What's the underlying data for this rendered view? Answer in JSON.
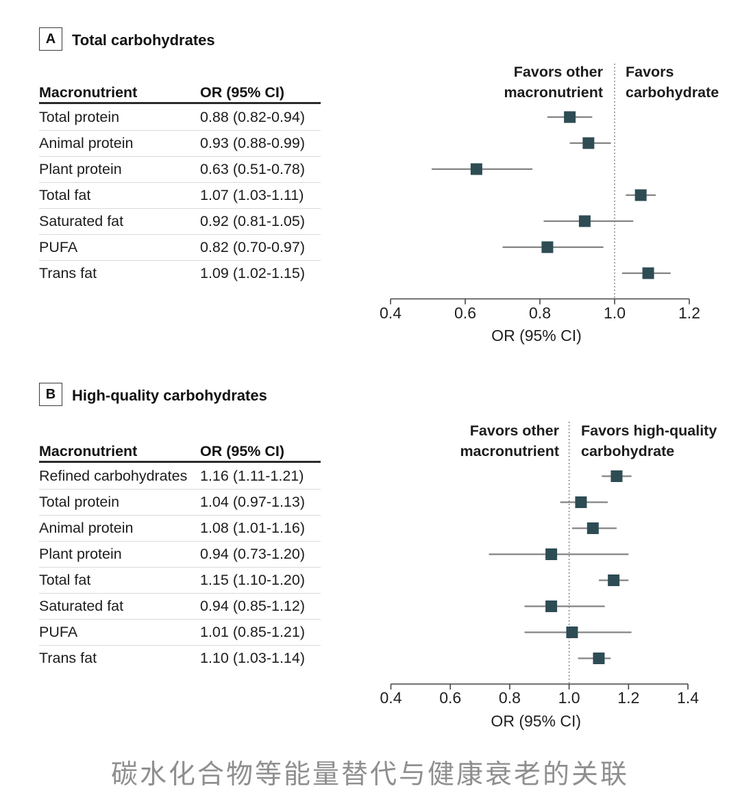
{
  "chart_data": [
    {
      "type": "forest",
      "panel": "A",
      "title": "Total carbohydrates",
      "columns": [
        "Macronutrient",
        "OR (95% CI)"
      ],
      "rows": [
        {
          "name": "Total protein",
          "or": 0.88,
          "lo": 0.82,
          "hi": 0.94
        },
        {
          "name": "Animal protein",
          "or": 0.93,
          "lo": 0.88,
          "hi": 0.99
        },
        {
          "name": "Plant protein",
          "or": 0.63,
          "lo": 0.51,
          "hi": 0.78
        },
        {
          "name": "Total fat",
          "or": 1.07,
          "lo": 1.03,
          "hi": 1.11
        },
        {
          "name": "Saturated fat",
          "or": 0.92,
          "lo": 0.81,
          "hi": 1.05
        },
        {
          "name": "PUFA",
          "or": 0.82,
          "lo": 0.7,
          "hi": 0.97
        },
        {
          "name": "Trans fat",
          "or": 1.09,
          "lo": 1.02,
          "hi": 1.15
        }
      ],
      "axis": {
        "min": 0.4,
        "max": 1.2,
        "ticks": [
          "0.4",
          "0.6",
          "0.8",
          "1.0",
          "1.2"
        ],
        "label": "OR (95% CI)",
        "ref_line": 1.0
      },
      "favors_left": [
        "Favors other",
        "macronutrient"
      ],
      "favors_right": [
        "Favors",
        "carbohydrate"
      ]
    },
    {
      "type": "forest",
      "panel": "B",
      "title": "High-quality carbohydrates",
      "columns": [
        "Macronutrient",
        "OR (95% CI)"
      ],
      "rows": [
        {
          "name": "Refined carbohydrates",
          "or": 1.16,
          "lo": 1.11,
          "hi": 1.21
        },
        {
          "name": "Total protein",
          "or": 1.04,
          "lo": 0.97,
          "hi": 1.13
        },
        {
          "name": "Animal protein",
          "or": 1.08,
          "lo": 1.01,
          "hi": 1.16
        },
        {
          "name": "Plant protein",
          "or": 0.94,
          "lo": 0.73,
          "hi": 1.2
        },
        {
          "name": "Total fat",
          "or": 1.15,
          "lo": 1.1,
          "hi": 1.2
        },
        {
          "name": "Saturated fat",
          "or": 0.94,
          "lo": 0.85,
          "hi": 1.12
        },
        {
          "name": "PUFA",
          "or": 1.01,
          "lo": 0.85,
          "hi": 1.21
        },
        {
          "name": "Trans fat",
          "or": 1.1,
          "lo": 1.03,
          "hi": 1.14
        }
      ],
      "axis": {
        "min": 0.4,
        "max": 1.4,
        "ticks": [
          "0.4",
          "0.6",
          "0.8",
          "1.0",
          "1.2",
          "1.4"
        ],
        "label": "OR (95% CI)",
        "ref_line": 1.0
      },
      "favors_left": [
        "Favors other",
        "macronutrient"
      ],
      "favors_right": [
        "Favors high-quality",
        "carbohydrate"
      ]
    }
  ],
  "caption": "碳水化合物等能量替代与健康衰老的关联",
  "colors": {
    "marker": "#2e4c54",
    "ci_line": "#828282",
    "axis": "#444444",
    "ref_line": "#666666",
    "separator": "#d9d9d9",
    "header_rule": "#2a2a2a",
    "caption": "#8f8f8f",
    "text": "#1c1c1c"
  }
}
